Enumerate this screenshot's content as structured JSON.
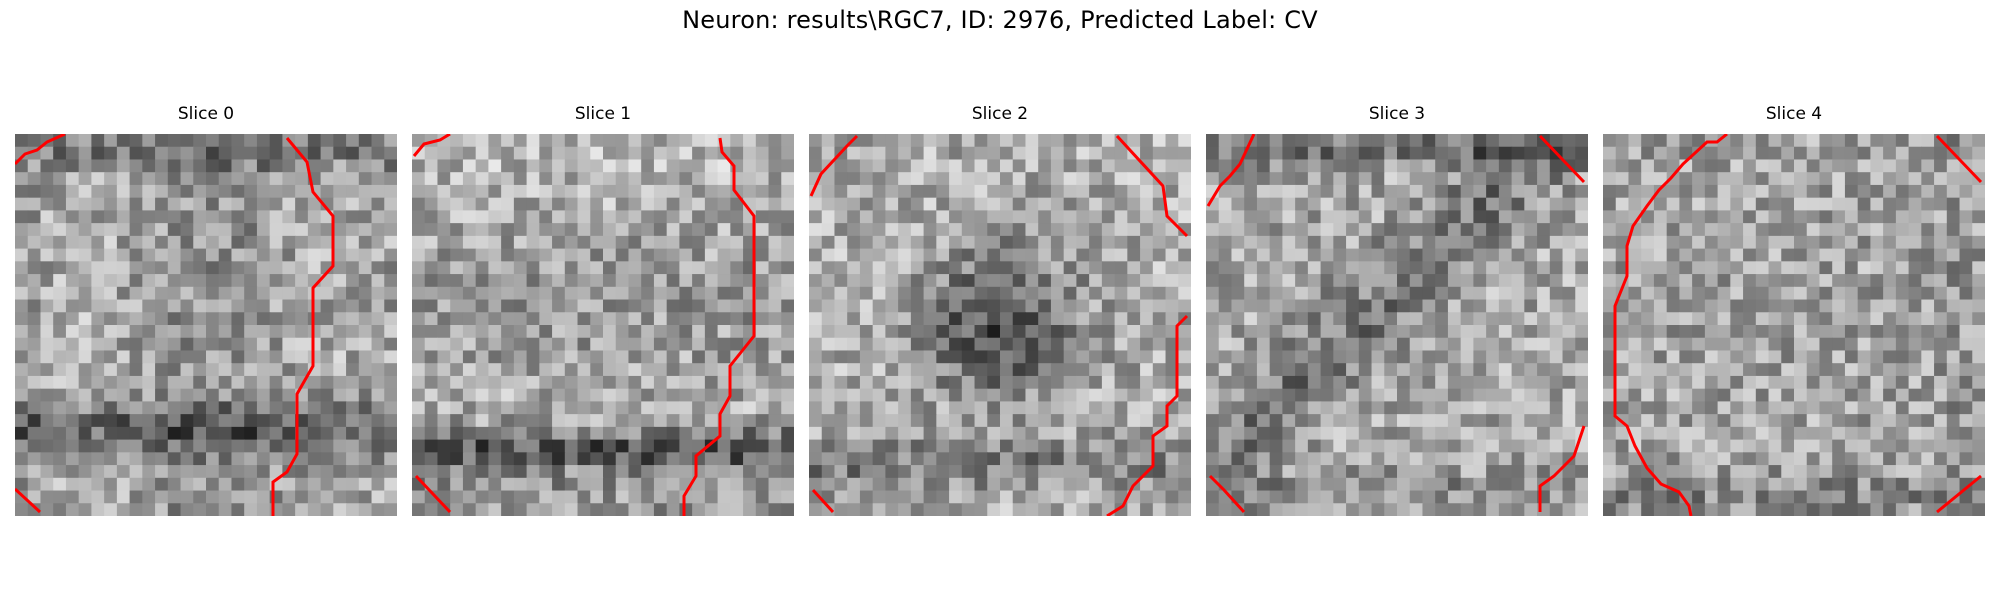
{
  "figure": {
    "title": "Neuron: results\\RGC7, ID: 2976, Predicted Label: CV",
    "grid_size": 30,
    "colormap": "gray",
    "contour_color": "#ff0000",
    "panels": [
      {
        "title": "Slice 0",
        "seed": 11,
        "pattern": "bottom-band"
      },
      {
        "title": "Slice 1",
        "seed": 23,
        "pattern": "bright-top-dark-bottom"
      },
      {
        "title": "Slice 2",
        "seed": 37,
        "pattern": "dark-center"
      },
      {
        "title": "Slice 3",
        "seed": 51,
        "pattern": "diagonal-dark"
      },
      {
        "title": "Slice 4",
        "seed": 67,
        "pattern": "uniform-bright"
      }
    ]
  }
}
